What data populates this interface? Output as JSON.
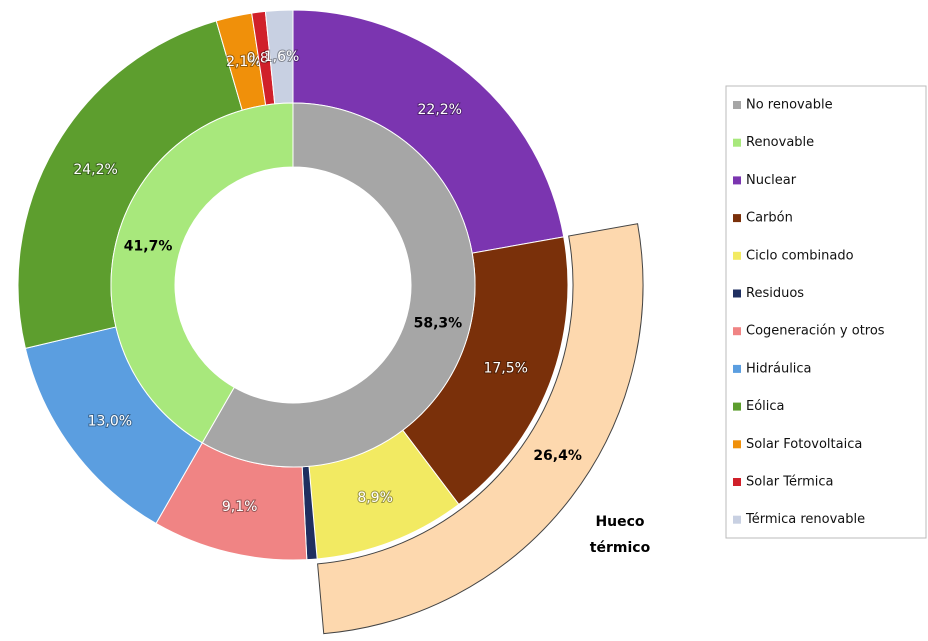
{
  "chart_data": {
    "type": "donut",
    "inner": {
      "categories": [
        "No renovable",
        "Renovable"
      ],
      "values": [
        58.3,
        41.7
      ],
      "value_labels": [
        "58,3%",
        "41,7%"
      ],
      "colors": [
        "#a6a6a6",
        "#a8e87c"
      ]
    },
    "outer": {
      "categories": [
        "Nuclear",
        "Carbón",
        "Ciclo combinado",
        "Residuos",
        "Cogeneración y otros",
        "Hidráulica",
        "Eólica",
        "Solar Fotovoltaica",
        "Solar Térmica",
        "Térmica renovable"
      ],
      "values": [
        22.2,
        17.5,
        8.9,
        0.6,
        9.1,
        13.0,
        24.2,
        2.1,
        0.8,
        1.6
      ],
      "value_labels": [
        "22,2%",
        "17,5%",
        "8,9%",
        null,
        "9,1%",
        "13,0%",
        "24,2%",
        "2,1%",
        "0,8%",
        "1,6%"
      ],
      "colors": [
        "#7b35b0",
        "#7a300a",
        "#f2ea62",
        "#1f2f60",
        "#f08484",
        "#5b9ee0",
        "#5d9e2e",
        "#f0900a",
        "#d0202a",
        "#c8d0e2"
      ]
    },
    "annotation": {
      "label": "Hueco térmico",
      "value": 26.4,
      "value_label": "26,4%",
      "color": "#fdd8ae"
    }
  }
}
